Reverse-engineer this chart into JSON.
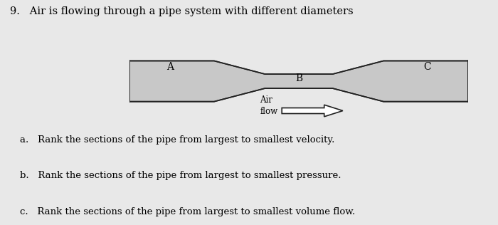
{
  "title": "9.   Air is flowing through a pipe system with different diameters",
  "title_fontsize": 10.5,
  "bg_color": "#e8e8e8",
  "pipe_fill": "#c8c8c8",
  "pipe_edge": "#222222",
  "label_A": "A",
  "label_B": "B",
  "label_C": "C",
  "air_flow_text": "Air\nflow",
  "question_a": "a.   Rank the sections of the pipe from largest to smallest velocity.",
  "question_b": "b.   Rank the sections of the pipe from largest to smallest pressure.",
  "question_c": "c.   Rank the sections of the pipe from largest to smallest volume flow.",
  "text_fontsize": 9.5
}
